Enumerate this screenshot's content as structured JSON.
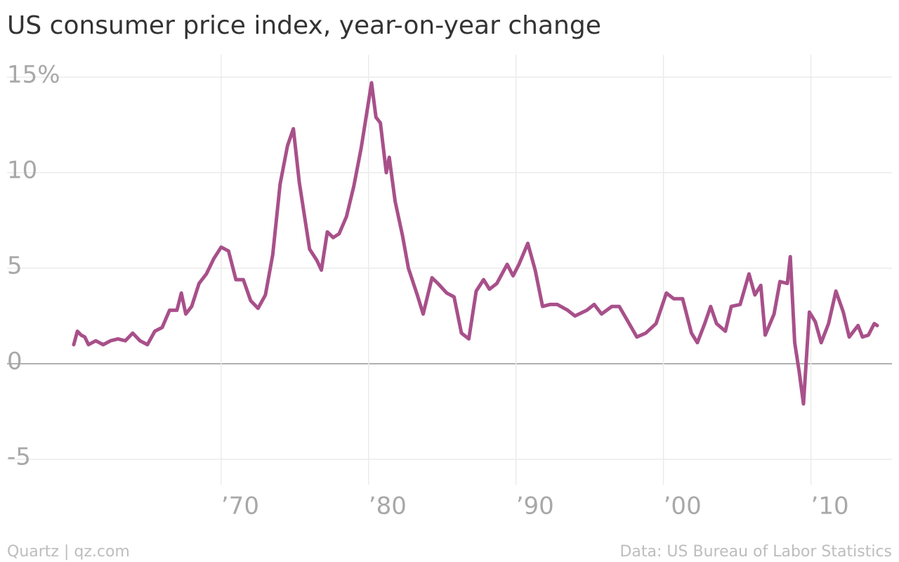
{
  "chart_data": {
    "type": "line",
    "title": "US consumer price index, year-on-year change",
    "source": "Data: US Bureau of Labor Statistics",
    "credit": "Quartz | qz.com",
    "color": "#a8508a",
    "x": [
      1960.0,
      1960.25,
      1960.5,
      1960.75,
      1961.0,
      1961.5,
      1962.0,
      1962.5,
      1963.0,
      1963.5,
      1964.0,
      1964.5,
      1965.0,
      1965.5,
      1966.0,
      1966.5,
      1967.0,
      1967.3,
      1967.6,
      1968.0,
      1968.5,
      1969.0,
      1969.5,
      1970.0,
      1970.5,
      1971.0,
      1971.5,
      1972.0,
      1972.5,
      1973.0,
      1973.5,
      1974.0,
      1974.5,
      1974.9,
      1975.3,
      1975.7,
      1976.0,
      1976.5,
      1976.8,
      1977.2,
      1977.6,
      1978.0,
      1978.5,
      1979.0,
      1979.5,
      1980.2,
      1980.5,
      1980.8,
      1981.2,
      1981.4,
      1981.8,
      1982.3,
      1982.7,
      1983.3,
      1983.7,
      1984.3,
      1984.7,
      1985.3,
      1985.8,
      1986.3,
      1986.8,
      1987.3,
      1987.8,
      1988.2,
      1988.7,
      1989.4,
      1989.8,
      1990.2,
      1990.8,
      1991.3,
      1991.8,
      1992.3,
      1992.8,
      1993.5,
      1994.0,
      1994.8,
      1995.3,
      1995.8,
      1996.5,
      1997.0,
      1997.6,
      1998.2,
      1998.8,
      1999.5,
      2000.2,
      2000.7,
      2001.3,
      2001.9,
      2002.3,
      2002.8,
      2003.2,
      2003.6,
      2004.2,
      2004.6,
      2005.2,
      2005.8,
      2006.2,
      2006.6,
      2006.9,
      2007.5,
      2007.9,
      2008.4,
      2008.6,
      2008.9,
      2009.2,
      2009.5,
      2009.9,
      2010.3,
      2010.7,
      2011.2,
      2011.7,
      2012.2,
      2012.6,
      2013.2,
      2013.5,
      2013.9,
      2014.3,
      2014.5
    ],
    "values": [
      1.0,
      1.7,
      1.5,
      1.4,
      1.0,
      1.2,
      1.0,
      1.2,
      1.3,
      1.2,
      1.6,
      1.2,
      1.0,
      1.7,
      1.9,
      2.8,
      2.8,
      3.7,
      2.6,
      3.0,
      4.2,
      4.7,
      5.5,
      6.1,
      5.9,
      4.4,
      4.4,
      3.3,
      2.9,
      3.6,
      5.7,
      9.4,
      11.4,
      12.3,
      9.5,
      7.5,
      6.0,
      5.4,
      4.9,
      6.9,
      6.6,
      6.8,
      7.7,
      9.3,
      11.3,
      14.7,
      12.9,
      12.6,
      10.0,
      10.8,
      8.5,
      6.7,
      5.0,
      3.6,
      2.6,
      4.5,
      4.2,
      3.7,
      3.5,
      1.6,
      1.3,
      3.8,
      4.4,
      3.9,
      4.2,
      5.2,
      4.6,
      5.2,
      6.3,
      4.9,
      3.0,
      3.1,
      3.1,
      2.8,
      2.5,
      2.8,
      3.1,
      2.6,
      3.0,
      3.0,
      2.2,
      1.4,
      1.6,
      2.1,
      3.7,
      3.4,
      3.4,
      1.6,
      1.1,
      2.1,
      3.0,
      2.1,
      1.7,
      3.0,
      3.1,
      4.7,
      3.6,
      4.1,
      1.5,
      2.6,
      4.3,
      4.2,
      5.6,
      1.1,
      -0.4,
      -2.1,
      2.7,
      2.2,
      1.1,
      2.1,
      3.8,
      2.7,
      1.4,
      2.0,
      1.4,
      1.5,
      2.1,
      2.0
    ],
    "xlim": [
      1955,
      2015.5
    ],
    "xticks": [
      {
        "value": 1970,
        "label": "’70"
      },
      {
        "value": 1980,
        "label": "’80"
      },
      {
        "value": 1990,
        "label": "’90"
      },
      {
        "value": 2000,
        "label": "’00"
      },
      {
        "value": 2010,
        "label": "’10"
      }
    ],
    "ylim": [
      -6.7,
      15.8
    ],
    "yticks": [
      -5,
      0,
      5,
      10,
      {
        "value": 15,
        "label": "15%"
      }
    ],
    "grid": true
  }
}
